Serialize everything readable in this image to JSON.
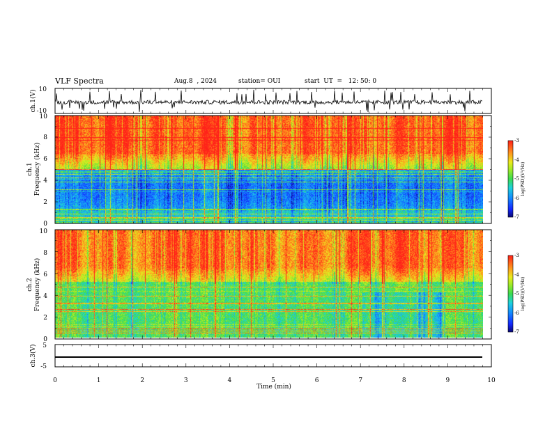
{
  "header": {
    "title": "VLF Spectra",
    "date": "Aug.8  , 2024",
    "station": "station= OUI",
    "start_ut": "start  UT  =   12: 50: 0"
  },
  "chart_data": [
    {
      "type": "line",
      "id": "ch1-waveform",
      "ylabel": "ch.1(V)",
      "ylim": [
        -10,
        10
      ],
      "yticks": [
        "10",
        "-10"
      ],
      "xlim": [
        0,
        10
      ],
      "note": "noisy waveform approx -1 V baseline with sferic spikes"
    },
    {
      "type": "heatmap",
      "id": "ch1-spectrogram",
      "ylabel": "ch.1\nFrequency (kHz)",
      "ylabel_line1": "ch.1",
      "ylabel_line2": "Frequency  (kHz)",
      "ylim": [
        0,
        10
      ],
      "yticks": [
        "0",
        "2",
        "4",
        "6",
        "8",
        "10"
      ],
      "xlim": [
        0,
        10
      ],
      "colorbar": {
        "label": "log(PSD)(V²/Hz)",
        "range": [
          -7,
          -3
        ],
        "ticks": [
          "-3",
          "-4",
          "-5",
          "-6",
          "-7"
        ]
      }
    },
    {
      "type": "heatmap",
      "id": "ch2-spectrogram",
      "ylabel_line1": "ch.2",
      "ylabel_line2": "Frequency  (kHz)",
      "ylim": [
        0,
        10
      ],
      "yticks": [
        "0",
        "2",
        "4",
        "6",
        "8",
        "10"
      ],
      "xlim": [
        0,
        10
      ],
      "colorbar": {
        "label": "log(PSD)(V²/Hz)",
        "range": [
          -7,
          -3
        ],
        "ticks": [
          "-3",
          "-4",
          "-5",
          "-6",
          "-7"
        ]
      }
    },
    {
      "type": "line",
      "id": "ch3-waveform",
      "ylabel": "ch.3(V)",
      "ylim": [
        -5,
        5
      ],
      "yticks": [
        "5",
        "-5"
      ],
      "values_constant": -2,
      "xlim": [
        0,
        10
      ],
      "xlabel": "Time  (min)",
      "xticks": [
        "0",
        "1",
        "2",
        "3",
        "4",
        "5",
        "6",
        "7",
        "8",
        "9",
        "10"
      ]
    }
  ],
  "colors": {
    "red": "#ff2a1a",
    "orange": "#ff9a1e",
    "yellow": "#e6ee1a",
    "green": "#3ddc4a",
    "cyan": "#22c8d8",
    "blue": "#1e4fff",
    "navy": "#0a0a8a"
  }
}
